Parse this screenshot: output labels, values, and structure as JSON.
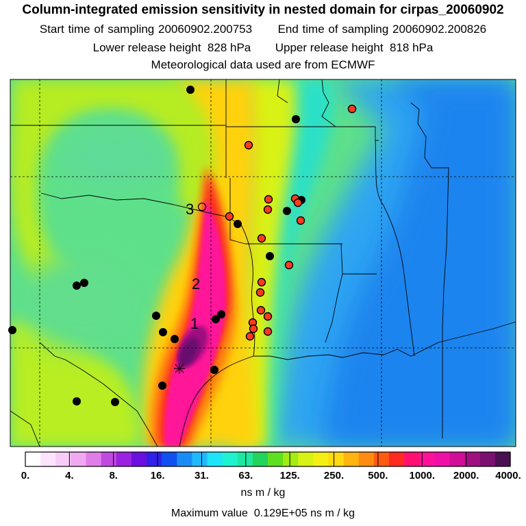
{
  "header": {
    "title": "Column-integrated emission sensitivity in nested domain for cirpas_20060902",
    "start_label": "Start time of sampling",
    "start_value": "20060902.200753",
    "end_label": "End time of sampling",
    "end_value": "20060902.200826",
    "lower_label": "Lower release height",
    "lower_value": "828 hPa",
    "upper_label": "Upper release height",
    "upper_value": "818 hPa",
    "met_line": "Meteorological data used are from ECMWF"
  },
  "map": {
    "trajectory_labels": [
      "1",
      "2",
      "3"
    ],
    "station_colors": {
      "black": "#000000",
      "red": "#ff3b1f"
    }
  },
  "colorbar": {
    "swatches": [
      "#ffffff",
      "#fde4fd",
      "#f8ccf8",
      "#f0a8f2",
      "#e07de8",
      "#c04ae0",
      "#9a22e0",
      "#6a10e0",
      "#3020e8",
      "#1050f0",
      "#1a8cf5",
      "#21b8fb",
      "#1ee4f8",
      "#1ef2d0",
      "#1ee8a0",
      "#22d45a",
      "#5ee020",
      "#a2ec14",
      "#d8f214",
      "#f5f014",
      "#ffda10",
      "#ffb410",
      "#ff8c10",
      "#ff5a12",
      "#ff2a20",
      "#ff1070",
      "#ff1299",
      "#f010a8",
      "#d00e98",
      "#a01080",
      "#7a1070",
      "#4a1050"
    ],
    "tick_labels": [
      "0.",
      "4.",
      "8.",
      "16.",
      "31.",
      "63.",
      "125.",
      "250.",
      "500.",
      "1000.",
      "2000.",
      "4000."
    ],
    "units": "ns m / kg"
  },
  "footer": {
    "max_label": "Maximum value",
    "max_value": "0.129E+05",
    "max_units": "ns m / kg"
  }
}
